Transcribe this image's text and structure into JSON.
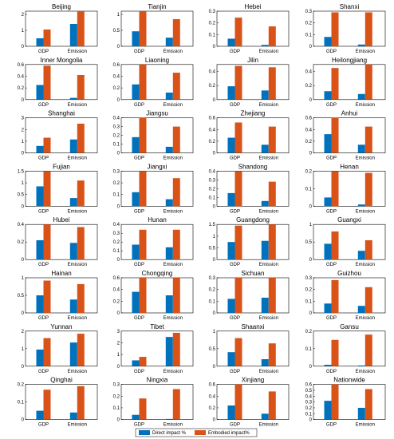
{
  "legend": {
    "direct_label": "Direct impact %",
    "embodied_label": "Embodied impact%"
  },
  "colors": {
    "direct": "#0072BD",
    "embodied": "#D95319"
  },
  "chart_data": [
    {
      "type": "bar",
      "title": "Beijing",
      "categories": [
        "GDP",
        "Emission"
      ],
      "ylim": [
        0,
        2.2
      ],
      "yticks": [
        "0",
        "1",
        "2"
      ],
      "series": [
        {
          "name": "Direct impact %",
          "values": [
            0.5,
            1.4
          ]
        },
        {
          "name": "Embodied impact%",
          "values": [
            1.05,
            2.2
          ]
        }
      ]
    },
    {
      "type": "bar",
      "title": "Tianjin",
      "categories": [
        "GDP",
        "Emission"
      ],
      "ylim": [
        0,
        1.1
      ],
      "yticks": [
        "0",
        "0.5",
        "1"
      ],
      "series": [
        {
          "name": "Direct impact %",
          "values": [
            0.47,
            0.27
          ]
        },
        {
          "name": "Embodied impact%",
          "values": [
            1.1,
            0.85
          ]
        }
      ]
    },
    {
      "type": "bar",
      "title": "Hebei",
      "categories": [
        "GDP",
        "Emission"
      ],
      "ylim": [
        0,
        0.3
      ],
      "yticks": [
        "0",
        "0.1",
        "0.2",
        "0.3"
      ],
      "series": [
        {
          "name": "Direct impact %",
          "values": [
            0.065,
            0.012
          ]
        },
        {
          "name": "Embodied impact%",
          "values": [
            0.245,
            0.17
          ]
        }
      ]
    },
    {
      "type": "bar",
      "title": "Shanxi",
      "categories": [
        "GDP",
        "Emission"
      ],
      "ylim": [
        0,
        0.3
      ],
      "yticks": [
        "0",
        "0.1",
        "0.2",
        "0.3"
      ],
      "series": [
        {
          "name": "Direct impact %",
          "values": [
            0.08,
            0.015
          ]
        },
        {
          "name": "Embodied impact%",
          "values": [
            0.29,
            0.29
          ]
        }
      ]
    },
    {
      "type": "bar",
      "title": "Inner Mongolia",
      "categories": [
        "GDP",
        "Emission"
      ],
      "ylim": [
        0,
        0.6
      ],
      "yticks": [
        "0",
        "0.2",
        "0.4",
        "0.6"
      ],
      "series": [
        {
          "name": "Direct impact %",
          "values": [
            0.25,
            0.03
          ]
        },
        {
          "name": "Embodied impact%",
          "values": [
            0.58,
            0.42
          ]
        }
      ]
    },
    {
      "type": "bar",
      "title": "Liaoning",
      "categories": [
        "GDP",
        "Emission"
      ],
      "ylim": [
        0,
        0.6
      ],
      "yticks": [
        "0",
        "0.2",
        "0.4",
        "0.6"
      ],
      "series": [
        {
          "name": "Direct impact %",
          "values": [
            0.26,
            0.12
          ]
        },
        {
          "name": "Embodied impact%",
          "values": [
            0.6,
            0.46
          ]
        }
      ]
    },
    {
      "type": "bar",
      "title": "Jilin",
      "categories": [
        "GDP",
        "Emission"
      ],
      "ylim": [
        0,
        0.5
      ],
      "yticks": [
        "0",
        "0.2",
        "0.4"
      ],
      "series": [
        {
          "name": "Direct impact %",
          "values": [
            0.19,
            0.13
          ]
        },
        {
          "name": "Embodied impact%",
          "values": [
            0.48,
            0.46
          ]
        }
      ]
    },
    {
      "type": "bar",
      "title": "Heilongjiang",
      "categories": [
        "GDP",
        "Emission"
      ],
      "ylim": [
        0,
        0.5
      ],
      "yticks": [
        "0",
        "0.2",
        "0.4"
      ],
      "series": [
        {
          "name": "Direct impact %",
          "values": [
            0.12,
            0.08
          ]
        },
        {
          "name": "Embodied impact%",
          "values": [
            0.45,
            0.5
          ]
        }
      ]
    },
    {
      "type": "bar",
      "title": "Shanghai",
      "categories": [
        "GDP",
        "Emission"
      ],
      "ylim": [
        0,
        3
      ],
      "yticks": [
        "0",
        "1",
        "2",
        "3"
      ],
      "series": [
        {
          "name": "Direct impact %",
          "values": [
            0.6,
            1.15
          ]
        },
        {
          "name": "Embodied impact%",
          "values": [
            1.3,
            2.5
          ]
        }
      ]
    },
    {
      "type": "bar",
      "title": "Jiangsu",
      "categories": [
        "GDP",
        "Emission"
      ],
      "ylim": [
        0,
        0.4
      ],
      "yticks": [
        "0",
        "0.1",
        "0.2",
        "0.3",
        "0.4"
      ],
      "series": [
        {
          "name": "Direct impact %",
          "values": [
            0.18,
            0.07
          ]
        },
        {
          "name": "Embodied impact%",
          "values": [
            0.4,
            0.3
          ]
        }
      ]
    },
    {
      "type": "bar",
      "title": "Zhejiang",
      "categories": [
        "GDP",
        "Emission"
      ],
      "ylim": [
        0,
        0.6
      ],
      "yticks": [
        "0",
        "0.2",
        "0.4",
        "0.6"
      ],
      "series": [
        {
          "name": "Direct impact %",
          "values": [
            0.26,
            0.14
          ]
        },
        {
          "name": "Embodied impact%",
          "values": [
            0.52,
            0.45
          ]
        }
      ]
    },
    {
      "type": "bar",
      "title": "Anhui",
      "categories": [
        "GDP",
        "Emission"
      ],
      "ylim": [
        0,
        0.6
      ],
      "yticks": [
        "0",
        "0.2",
        "0.4",
        "0.6"
      ],
      "series": [
        {
          "name": "Direct impact %",
          "values": [
            0.32,
            0.14
          ]
        },
        {
          "name": "Embodied impact%",
          "values": [
            0.6,
            0.45
          ]
        }
      ]
    },
    {
      "type": "bar",
      "title": "Fujian",
      "categories": [
        "GDP",
        "Emission"
      ],
      "ylim": [
        0,
        1.5
      ],
      "yticks": [
        "0",
        "0.5",
        "1",
        "1.5"
      ],
      "series": [
        {
          "name": "Direct impact %",
          "values": [
            0.85,
            0.35
          ]
        },
        {
          "name": "Embodied impact%",
          "values": [
            1.5,
            1.1
          ]
        }
      ]
    },
    {
      "type": "bar",
      "title": "Jiangxi",
      "categories": [
        "GDP",
        "Emission"
      ],
      "ylim": [
        0,
        0.3
      ],
      "yticks": [
        "0",
        "0.1",
        "0.2",
        "0.3"
      ],
      "series": [
        {
          "name": "Direct impact %",
          "values": [
            0.12,
            0.06
          ]
        },
        {
          "name": "Embodied impact%",
          "values": [
            0.3,
            0.24
          ]
        }
      ]
    },
    {
      "type": "bar",
      "title": "Shandong",
      "categories": [
        "GDP",
        "Emission"
      ],
      "ylim": [
        0,
        0.4
      ],
      "yticks": [
        "0",
        "0.1",
        "0.2",
        "0.3",
        "0.4"
      ],
      "series": [
        {
          "name": "Direct impact %",
          "values": [
            0.15,
            0.06
          ]
        },
        {
          "name": "Embodied impact%",
          "values": [
            0.4,
            0.28
          ]
        }
      ]
    },
    {
      "type": "bar",
      "title": "Henan",
      "categories": [
        "GDP",
        "Emission"
      ],
      "ylim": [
        0,
        0.2
      ],
      "yticks": [
        "0",
        "0.1",
        "0.2"
      ],
      "series": [
        {
          "name": "Direct impact %",
          "values": [
            0.05,
            0.01
          ]
        },
        {
          "name": "Embodied impact%",
          "values": [
            0.2,
            0.19
          ]
        }
      ]
    },
    {
      "type": "bar",
      "title": "Hubei",
      "categories": [
        "GDP",
        "Emission"
      ],
      "ylim": [
        0,
        0.4
      ],
      "yticks": [
        "0",
        "0.2",
        "0.4"
      ],
      "series": [
        {
          "name": "Direct impact %",
          "values": [
            0.22,
            0.19
          ]
        },
        {
          "name": "Embodied impact%",
          "values": [
            0.4,
            0.37
          ]
        }
      ]
    },
    {
      "type": "bar",
      "title": "Hunan",
      "categories": [
        "GDP",
        "Emission"
      ],
      "ylim": [
        0,
        0.4
      ],
      "yticks": [
        "0",
        "0.1",
        "0.2",
        "0.3",
        "0.4"
      ],
      "series": [
        {
          "name": "Direct impact %",
          "values": [
            0.17,
            0.14
          ]
        },
        {
          "name": "Embodied impact%",
          "values": [
            0.34,
            0.34
          ]
        }
      ]
    },
    {
      "type": "bar",
      "title": "Guangdong",
      "categories": [
        "GDP",
        "Emission"
      ],
      "ylim": [
        0,
        1.5
      ],
      "yticks": [
        "0",
        "0.5",
        "1",
        "1.5"
      ],
      "series": [
        {
          "name": "Direct impact %",
          "values": [
            0.75,
            0.8
          ]
        },
        {
          "name": "Embodied impact%",
          "values": [
            1.45,
            1.5
          ]
        }
      ]
    },
    {
      "type": "bar",
      "title": "Guangxi",
      "categories": [
        "GDP",
        "Emission"
      ],
      "ylim": [
        0,
        1
      ],
      "yticks": [
        "0",
        "0.5",
        "1"
      ],
      "series": [
        {
          "name": "Direct impact %",
          "values": [
            0.45,
            0.25
          ]
        },
        {
          "name": "Embodied impact%",
          "values": [
            0.8,
            0.55
          ]
        }
      ]
    },
    {
      "type": "bar",
      "title": "Hainan",
      "categories": [
        "GDP",
        "Emission"
      ],
      "ylim": [
        0,
        1
      ],
      "yticks": [
        "0",
        "0.5",
        "1"
      ],
      "series": [
        {
          "name": "Direct impact %",
          "values": [
            0.5,
            0.38
          ]
        },
        {
          "name": "Embodied impact%",
          "values": [
            0.92,
            0.82
          ]
        }
      ]
    },
    {
      "type": "bar",
      "title": "Chongqing",
      "categories": [
        "GDP",
        "Emission"
      ],
      "ylim": [
        0,
        0.6
      ],
      "yticks": [
        "0",
        "0.2",
        "0.4",
        "0.6"
      ],
      "series": [
        {
          "name": "Direct impact %",
          "values": [
            0.36,
            0.3
          ]
        },
        {
          "name": "Embodied impact%",
          "values": [
            0.6,
            0.6
          ]
        }
      ]
    },
    {
      "type": "bar",
      "title": "Sichuan",
      "categories": [
        "GDP",
        "Emission"
      ],
      "ylim": [
        0,
        0.3
      ],
      "yticks": [
        "0",
        "0.1",
        "0.2",
        "0.3"
      ],
      "series": [
        {
          "name": "Direct impact %",
          "values": [
            0.12,
            0.13
          ]
        },
        {
          "name": "Embodied impact%",
          "values": [
            0.3,
            0.3
          ]
        }
      ]
    },
    {
      "type": "bar",
      "title": "Guizhou",
      "categories": [
        "GDP",
        "Emission"
      ],
      "ylim": [
        0,
        0.3
      ],
      "yticks": [
        "0",
        "0.1",
        "0.2",
        "0.3"
      ],
      "series": [
        {
          "name": "Direct impact %",
          "values": [
            0.08,
            0.06
          ]
        },
        {
          "name": "Embodied impact%",
          "values": [
            0.28,
            0.22
          ]
        }
      ]
    },
    {
      "type": "bar",
      "title": "Yunnan",
      "categories": [
        "GDP",
        "Emission"
      ],
      "ylim": [
        0,
        2
      ],
      "yticks": [
        "0",
        "1",
        "2"
      ],
      "series": [
        {
          "name": "Direct impact %",
          "values": [
            0.95,
            1.35
          ]
        },
        {
          "name": "Embodied impact%",
          "values": [
            1.6,
            1.85
          ]
        }
      ]
    },
    {
      "type": "bar",
      "title": "Tibet",
      "categories": [
        "GDP",
        "Emission"
      ],
      "ylim": [
        0,
        3
      ],
      "yticks": [
        "0",
        "1",
        "2",
        "3"
      ],
      "series": [
        {
          "name": "Direct impact %",
          "values": [
            0.5,
            2.5
          ]
        },
        {
          "name": "Embodied impact%",
          "values": [
            0.8,
            2.85
          ]
        }
      ]
    },
    {
      "type": "bar",
      "title": "Shaanxi",
      "categories": [
        "GDP",
        "Emission"
      ],
      "ylim": [
        0,
        1
      ],
      "yticks": [
        "0",
        "0.5",
        "1"
      ],
      "series": [
        {
          "name": "Direct impact %",
          "values": [
            0.4,
            0.2
          ]
        },
        {
          "name": "Embodied impact%",
          "values": [
            0.8,
            0.65
          ]
        }
      ]
    },
    {
      "type": "bar",
      "title": "Gansu",
      "categories": [
        "GDP",
        "Emission"
      ],
      "ylim": [
        0,
        0.2
      ],
      "yticks": [
        "0",
        "0.1",
        "0.2"
      ],
      "series": [
        {
          "name": "Direct impact %",
          "values": [
            0.008,
            0.004
          ]
        },
        {
          "name": "Embodied impact%",
          "values": [
            0.15,
            0.18
          ]
        }
      ]
    },
    {
      "type": "bar",
      "title": "Qinghai",
      "categories": [
        "GDP",
        "Emission"
      ],
      "ylim": [
        0,
        0.2
      ],
      "yticks": [
        "0",
        "0.1",
        "0.2"
      ],
      "series": [
        {
          "name": "Direct impact %",
          "values": [
            0.05,
            0.04
          ]
        },
        {
          "name": "Embodied impact%",
          "values": [
            0.17,
            0.19
          ]
        }
      ]
    },
    {
      "type": "bar",
      "title": "Ningxia",
      "categories": [
        "GDP",
        "Emission"
      ],
      "ylim": [
        0,
        0.3
      ],
      "yticks": [
        "0",
        "0.1",
        "0.2",
        "0.3"
      ],
      "series": [
        {
          "name": "Direct impact %",
          "values": [
            0.04,
            0.005
          ]
        },
        {
          "name": "Embodied impact%",
          "values": [
            0.18,
            0.26
          ]
        }
      ]
    },
    {
      "type": "bar",
      "title": "Xinjiang",
      "categories": [
        "GDP",
        "Emission"
      ],
      "ylim": [
        0,
        0.6
      ],
      "yticks": [
        "0",
        "0.2",
        "0.4",
        "0.6"
      ],
      "series": [
        {
          "name": "Direct impact %",
          "values": [
            0.24,
            0.1
          ]
        },
        {
          "name": "Embodied impact%",
          "values": [
            0.6,
            0.48
          ]
        }
      ]
    },
    {
      "type": "bar",
      "title": "Nationwide",
      "categories": [
        "GDP",
        "Emission"
      ],
      "ylim": [
        0,
        0.6
      ],
      "yticks": [
        "0",
        "0.1",
        "0.2",
        "0.3",
        "0.4",
        "0.5",
        "0.6"
      ],
      "series": [
        {
          "name": "Direct impact %",
          "values": [
            0.32,
            0.2
          ]
        },
        {
          "name": "Embodied impact%",
          "values": [
            0.6,
            0.52
          ]
        }
      ]
    }
  ]
}
